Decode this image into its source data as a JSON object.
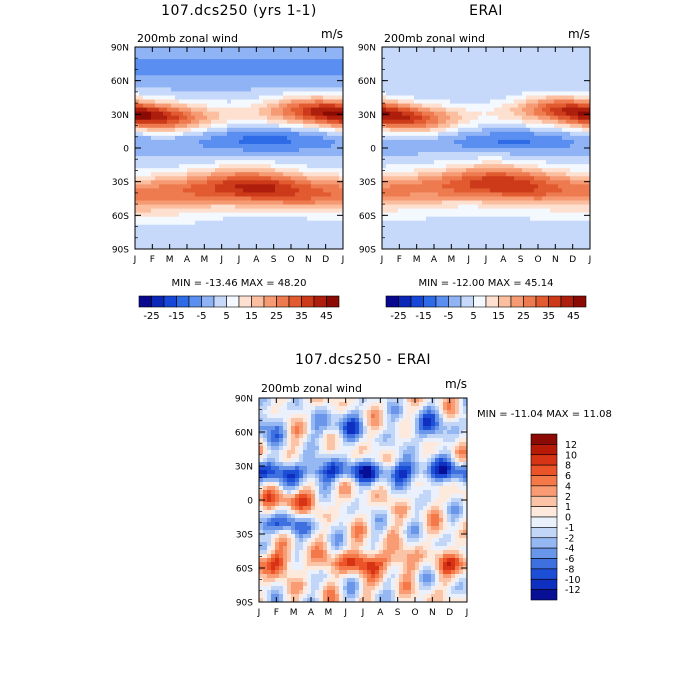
{
  "chart_data": [
    {
      "type": "heatmap",
      "title": "107.dcs250 (yrs 1-1)",
      "subtitle_left": "200mb zonal wind",
      "subtitle_right": "m/s",
      "x_ticks": [
        "J",
        "F",
        "M",
        "A",
        "M",
        "J",
        "J",
        "A",
        "S",
        "O",
        "N",
        "D",
        "J"
      ],
      "y_ticks": [
        "90N",
        "60N",
        "30N",
        "0",
        "30S",
        "60S",
        "90S"
      ],
      "stats": "MIN = -13.46 MAX =  48.20",
      "colorbar_labels": [
        "-25",
        "-15",
        "-5",
        "5",
        "15",
        "25",
        "35",
        "45"
      ],
      "colorbar_colors": [
        "#08088f",
        "#0b27b8",
        "#1747d8",
        "#2e6be6",
        "#5a8ef0",
        "#8fb3f5",
        "#c6d9fa",
        "#f4f8ff",
        "#fde0cf",
        "#fbbfa0",
        "#f59a73",
        "#ee7b4f",
        "#e25a30",
        "#cc3a1a",
        "#ad1f0c",
        "#8b0a03"
      ],
      "vmin": -30,
      "vmax": 50
    },
    {
      "type": "heatmap",
      "title": "ERAI",
      "subtitle_left": "200mb zonal wind",
      "subtitle_right": "m/s",
      "x_ticks": [
        "J",
        "F",
        "M",
        "A",
        "M",
        "J",
        "J",
        "A",
        "S",
        "O",
        "N",
        "D",
        "J"
      ],
      "y_ticks": [
        "90N",
        "60N",
        "30N",
        "0",
        "30S",
        "60S",
        "90S"
      ],
      "stats": "MIN = -12.00 MAX =  45.14",
      "colorbar_labels": [
        "-25",
        "-15",
        "-5",
        "5",
        "15",
        "25",
        "35",
        "45"
      ],
      "colorbar_colors": [
        "#08088f",
        "#0b27b8",
        "#1747d8",
        "#2e6be6",
        "#5a8ef0",
        "#8fb3f5",
        "#c6d9fa",
        "#f4f8ff",
        "#fde0cf",
        "#fbbfa0",
        "#f59a73",
        "#ee7b4f",
        "#e25a30",
        "#cc3a1a",
        "#ad1f0c",
        "#8b0a03"
      ],
      "vmin": -30,
      "vmax": 50
    },
    {
      "type": "heatmap",
      "title": "107.dcs250 - ERAI",
      "subtitle_left": "200mb zonal wind",
      "subtitle_right": "m/s",
      "x_ticks": [
        "J",
        "F",
        "M",
        "A",
        "M",
        "J",
        "J",
        "A",
        "S",
        "O",
        "N",
        "D",
        "J"
      ],
      "y_ticks": [
        "90N",
        "60N",
        "30N",
        "0",
        "30S",
        "60S",
        "90S"
      ],
      "stats": "MIN = -11.04 MAX =  11.08",
      "colorbar_labels": [
        "12",
        "10",
        "8",
        "6",
        "4",
        "2",
        "1",
        "0",
        "-1",
        "-2",
        "-4",
        "-6",
        "-8",
        "-10",
        "-12"
      ],
      "colorbar_colors": [
        "#8b0a03",
        "#b81a08",
        "#d63414",
        "#ec5328",
        "#f57848",
        "#f99c73",
        "#fcc4a6",
        "#feeadc",
        "#eaf1fd",
        "#c2d6f8",
        "#96b8f2",
        "#6a96ea",
        "#3f70e0",
        "#1d4ed6",
        "#0e2fbf",
        "#070f96"
      ],
      "vmin": -13,
      "vmax": 13
    }
  ]
}
